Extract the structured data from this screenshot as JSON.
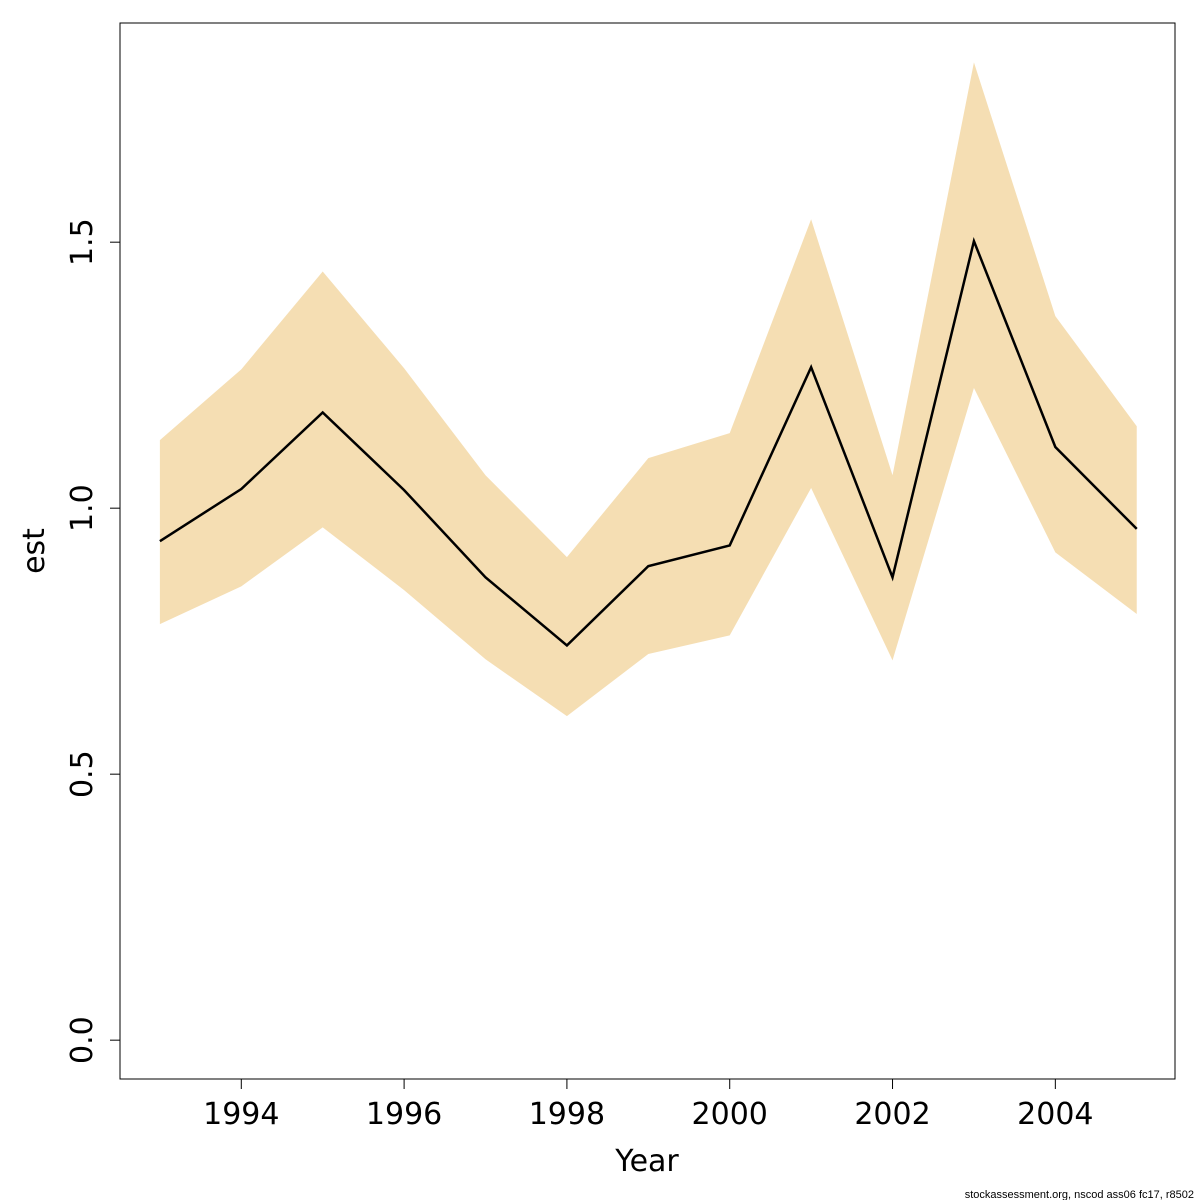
{
  "chart_data": {
    "type": "line",
    "title": "",
    "xlabel": "Year",
    "ylabel": "est",
    "xlim": [
      1992.51,
      2005.47
    ],
    "ylim": [
      -0.073,
      1.912
    ],
    "grid": false,
    "x": [
      1993,
      1994,
      1995,
      1996,
      1997,
      1998,
      1999,
      2000,
      2001,
      2002,
      2003,
      2004,
      2005
    ],
    "series": [
      {
        "values": [
          0.938,
          1.036,
          1.18,
          1.034,
          0.87,
          0.742,
          0.891,
          0.93,
          1.265,
          0.87,
          1.502,
          1.115,
          0.961
        ],
        "color": "#000000"
      }
    ],
    "band": {
      "upper": [
        1.128,
        1.261,
        1.445,
        1.263,
        1.062,
        0.908,
        1.094,
        1.141,
        1.543,
        1.062,
        1.838,
        1.361,
        1.154
      ],
      "lower": [
        0.782,
        0.853,
        0.964,
        0.846,
        0.716,
        0.609,
        0.726,
        0.761,
        1.038,
        0.714,
        1.226,
        0.917,
        0.801
      ],
      "color": "#f5deb3"
    },
    "xticks": [
      1994,
      1996,
      1998,
      2000,
      2002,
      2004
    ],
    "xtick_labels": [
      "1994",
      "1996",
      "1998",
      "2000",
      "2002",
      "2004"
    ],
    "yticks": [
      0,
      0.5,
      1,
      1.5
    ],
    "ytick_labels": [
      "0.0",
      "0.5",
      "1.0",
      "1.5"
    ]
  },
  "footer": "stockassessment.org, nscod  ass06  fc17, r8502"
}
